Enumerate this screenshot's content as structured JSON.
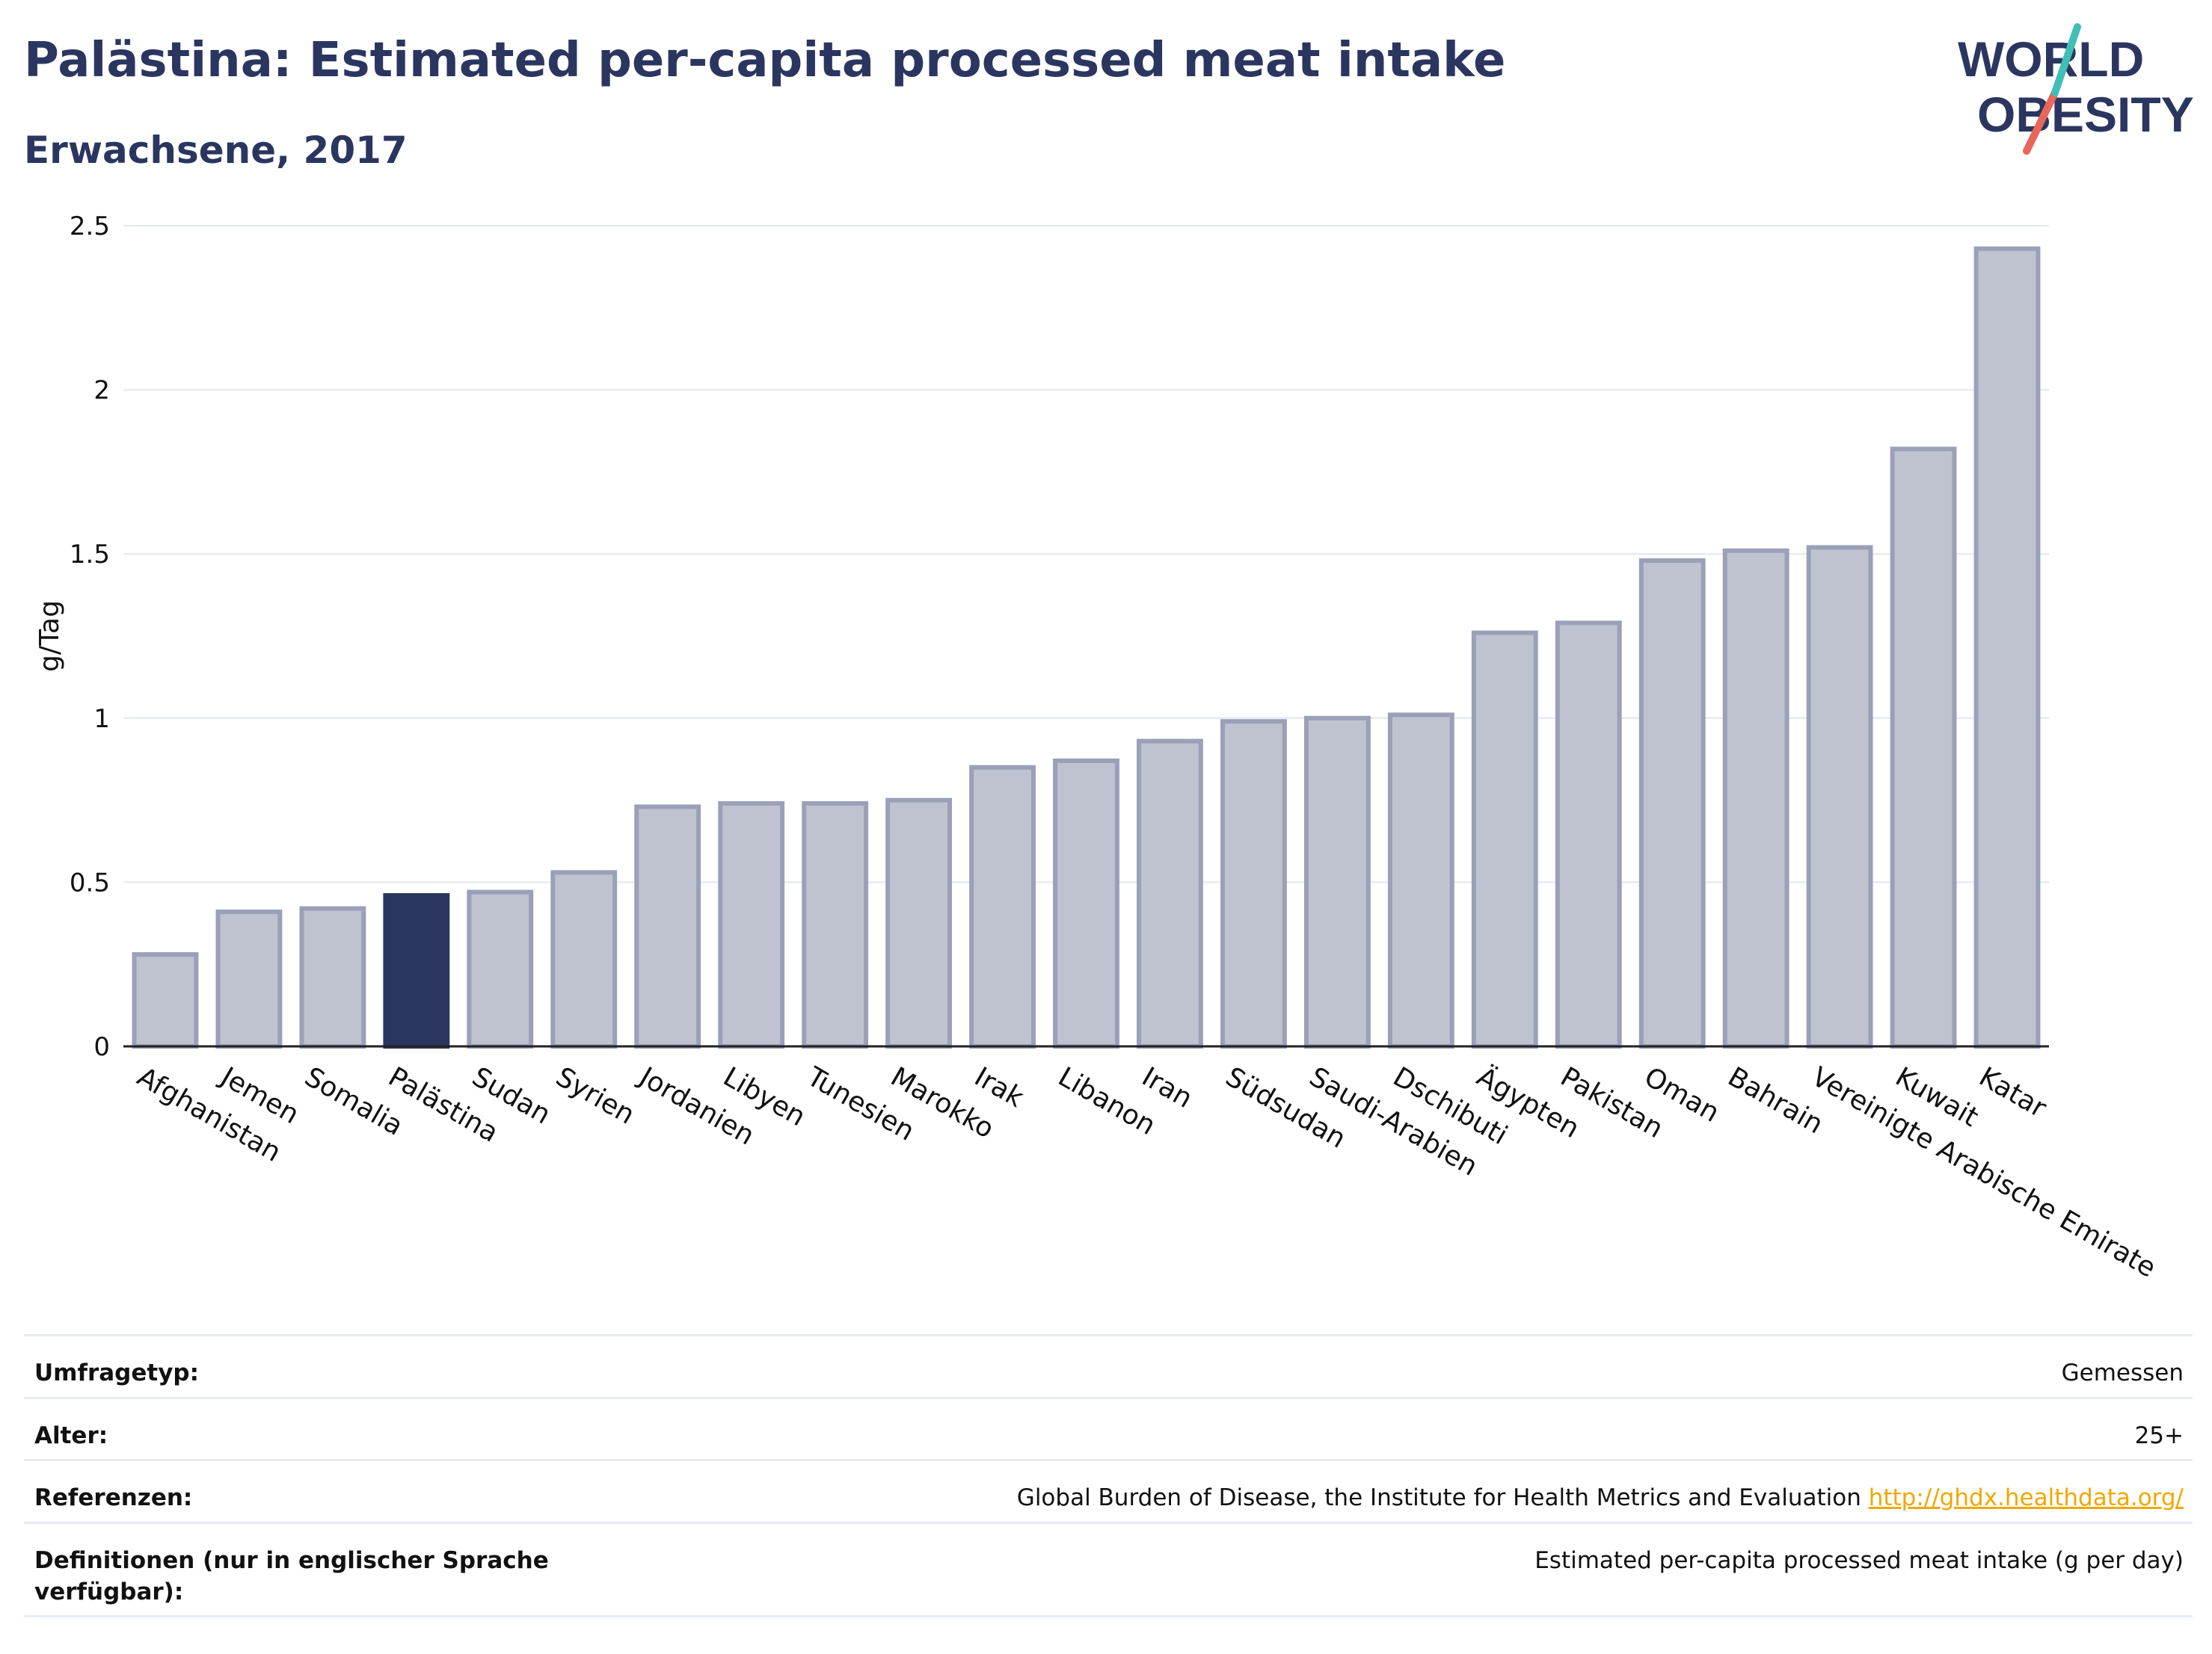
{
  "header": {
    "title": "Palästina: Estimated per-capita processed meat intake",
    "subtitle": "Erwachsene, 2017"
  },
  "logo": {
    "line1": "WORLD",
    "line2": "OBESITY"
  },
  "colors": {
    "bar": "#bfc3d0",
    "bar_edge": "#9aa0b8",
    "highlight": "#2b3660",
    "grid": "#e3e6ee",
    "title": "#2b3660",
    "link": "#f0a800"
  },
  "chart_data": {
    "type": "bar",
    "ylabel": "g/Tag",
    "ylim": [
      0,
      2.5
    ],
    "yticks": [
      0,
      0.5,
      1,
      1.5,
      2,
      2.5
    ],
    "ytick_labels": [
      "0",
      "0.5",
      "1",
      "1.5",
      "2",
      "2.5"
    ],
    "grid": true,
    "highlight": "Palästina",
    "categories": [
      "Afghanistan",
      "Jemen",
      "Somalia",
      "Palästina",
      "Sudan",
      "Syrien",
      "Jordanien",
      "Libyen",
      "Tunesien",
      "Marokko",
      "Irak",
      "Libanon",
      "Iran",
      "Südsudan",
      "Saudi-Arabien",
      "Dschibuti",
      "Ägypten",
      "Pakistan",
      "Oman",
      "Bahrain",
      "Vereinigte Arabische Emirate",
      "Kuwait",
      "Katar"
    ],
    "values": [
      0.28,
      0.41,
      0.42,
      0.46,
      0.47,
      0.53,
      0.73,
      0.74,
      0.74,
      0.75,
      0.85,
      0.87,
      0.93,
      0.99,
      1.0,
      1.01,
      1.26,
      1.29,
      1.48,
      1.51,
      1.52,
      1.82,
      2.43
    ]
  },
  "meta": {
    "survey_label": "Umfragetyp:",
    "survey_value": "Gemessen",
    "age_label": "Alter:",
    "age_value": "25+",
    "ref_label": "Referenzen:",
    "ref_value": "Global Burden of Disease, the Institute for Health Metrics and Evaluation",
    "ref_link": "http://ghdx.healthdata.org/",
    "def_label": "Definitionen (nur in englischer Sprache verfügbar):",
    "def_value": "Estimated per-capita processed meat intake (g per day)"
  }
}
